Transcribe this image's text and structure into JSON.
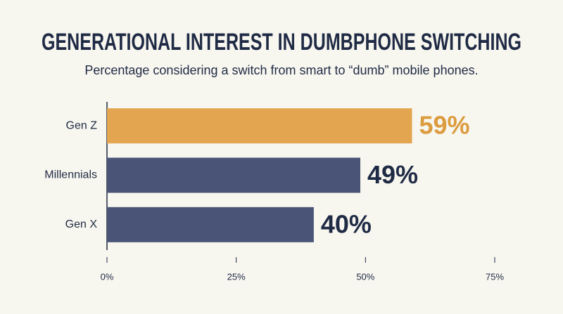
{
  "chart_data": {
    "type": "bar",
    "orientation": "horizontal",
    "title": "GENERATIONAL INTEREST IN DUMBPHONE SWITCHING",
    "subtitle": "Percentage considering a switch from smart to “dumb” mobile phones.",
    "categories": [
      "Gen Z",
      "Millennials",
      "Gen X"
    ],
    "values": [
      59,
      49,
      40
    ],
    "value_labels": [
      "59%",
      "49%",
      "40%"
    ],
    "colors": [
      "#e3a54f",
      "#4a5477",
      "#4a5477"
    ],
    "label_colors": [
      "#dc9c3f",
      "#1f2a44",
      "#1f2a44"
    ],
    "xlim": [
      0,
      75
    ],
    "xticks": [
      {
        "value": 0,
        "label": "0%"
      },
      {
        "value": 25,
        "label": "25%"
      },
      {
        "value": 50,
        "label": "50%"
      },
      {
        "value": 75,
        "label": "75%"
      }
    ]
  }
}
